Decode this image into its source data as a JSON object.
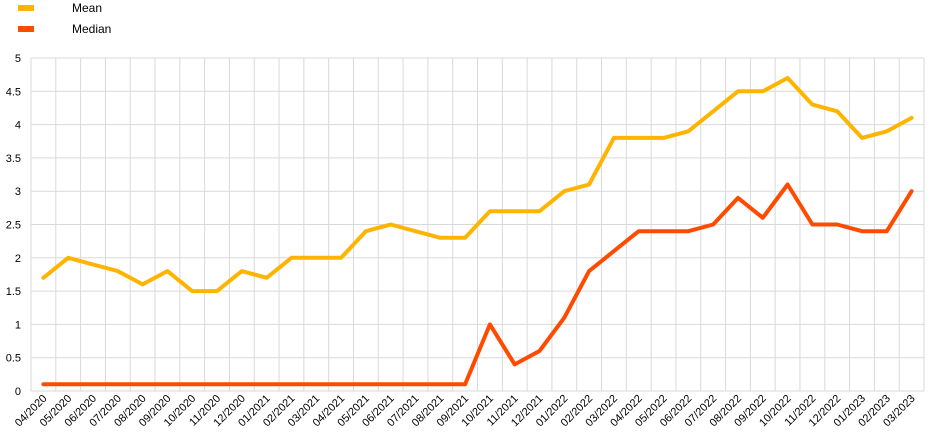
{
  "chart_data": {
    "type": "line",
    "title": "",
    "xlabel": "",
    "ylabel": "",
    "ylim": [
      0,
      5
    ],
    "yticks": [
      "0",
      "0.5",
      "1",
      "1.5",
      "2",
      "2.5",
      "3",
      "3.5",
      "4",
      "4.5",
      "5"
    ],
    "grid": true,
    "legend_position": "top-left",
    "categories": [
      "04/2020",
      "05/2020",
      "06/2020",
      "07/2020",
      "08/2020",
      "09/2020",
      "10/2020",
      "11/2020",
      "12/2020",
      "01/2021",
      "02/2021",
      "03/2021",
      "04/2021",
      "05/2021",
      "06/2021",
      "07/2021",
      "08/2021",
      "09/2021",
      "10/2021",
      "11/2021",
      "12/2021",
      "01/2022",
      "02/2022",
      "03/2022",
      "04/2022",
      "05/2022",
      "06/2022",
      "07/2022",
      "08/2022",
      "09/2022",
      "10/2022",
      "11/2022",
      "12/2022",
      "01/2023",
      "02/2023",
      "03/2023"
    ],
    "series": [
      {
        "name": "Mean",
        "color": "#FFB400",
        "values": [
          1.7,
          2.0,
          1.9,
          1.8,
          1.6,
          1.8,
          1.5,
          1.5,
          1.8,
          1.7,
          2.0,
          2.0,
          2.0,
          2.4,
          2.5,
          2.4,
          2.3,
          2.3,
          2.7,
          2.7,
          2.7,
          3.0,
          3.1,
          3.8,
          3.8,
          3.8,
          3.9,
          4.2,
          4.5,
          4.5,
          4.7,
          4.3,
          4.2,
          3.8,
          3.9,
          4.1
        ]
      },
      {
        "name": "Median",
        "color": "#FF4B00",
        "values": [
          0.1,
          0.1,
          0.1,
          0.1,
          0.1,
          0.1,
          0.1,
          0.1,
          0.1,
          0.1,
          0.1,
          0.1,
          0.1,
          0.1,
          0.1,
          0.1,
          0.1,
          0.1,
          1.0,
          0.4,
          0.6,
          1.1,
          1.8,
          2.1,
          2.4,
          2.4,
          2.4,
          2.5,
          2.9,
          2.6,
          3.1,
          2.5,
          2.5,
          2.4,
          2.4,
          3.0
        ]
      }
    ]
  }
}
